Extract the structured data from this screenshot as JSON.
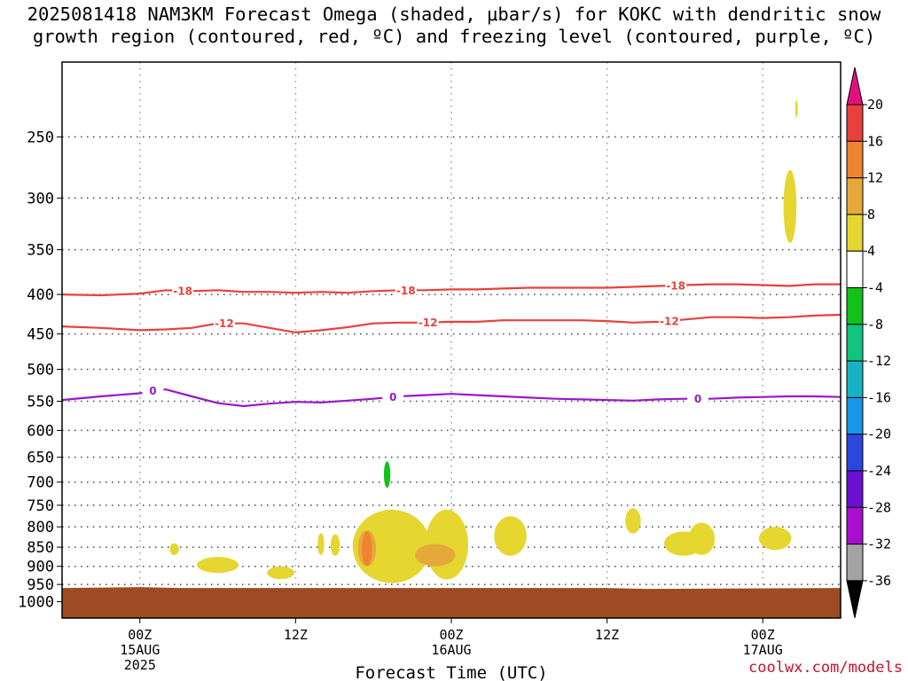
{
  "chart_data": {
    "type": "heatmap",
    "title_line1": "2025081418 NAM3KM Forecast Omega (shaded, μbar/s) for KOKC with dendritic snow",
    "title_line2": "growth region (contoured, red, ºC) and freezing level (contoured, purple, ºC)",
    "xlabel": "Forecast Time (UTC)",
    "x_tick_labels": [
      {
        "t": "00Z",
        "d": "15AUG",
        "y": "2025"
      },
      {
        "t": "12Z",
        "d": "",
        "y": ""
      },
      {
        "t": "00Z",
        "d": "16AUG",
        "y": ""
      },
      {
        "t": "12Z",
        "d": "",
        "y": ""
      },
      {
        "t": "00Z",
        "d": "17AUG",
        "y": ""
      }
    ],
    "x_range_hours": [
      -6,
      54
    ],
    "y_axis_log_pressure": true,
    "y_range_hPa": [
      200,
      1050
    ],
    "y_tick_labels": [
      "250",
      "300",
      "350",
      "400",
      "450",
      "500",
      "550",
      "600",
      "650",
      "700",
      "750",
      "800",
      "850",
      "900",
      "950",
      "1000"
    ],
    "grid": "dotted",
    "colorbar": {
      "tick_labels": [
        "20",
        "16",
        "12",
        "8",
        "4",
        "-4",
        "-8",
        "-12",
        "-16",
        "-20",
        "-24",
        "-28",
        "-32",
        "-36"
      ],
      "colors": {
        "above_20": "#e0117f",
        "16_20": "#e8413c",
        "12_16": "#ef8430",
        "8_12": "#e6a83b",
        "4_8": "#e6d630",
        "neutral": "#ffffff",
        "m8_m4": "#12c21a",
        "m12_m8": "#11c47f",
        "m16_m12": "#17b3c4",
        "m20_m16": "#1a96e6",
        "m24_m20": "#2a48e0",
        "m28_m24": "#6b0fd1",
        "m32_m28": "#a80fd0",
        "m36_m32": "#a3a3a3",
        "below_m36": "#000000"
      }
    },
    "contours": [
      {
        "label": "-18",
        "color": "#e8413c",
        "hours": [
          -6,
          -3,
          0,
          2,
          4,
          6,
          8,
          10,
          12,
          14,
          16,
          18,
          20,
          22,
          24,
          26,
          28,
          30,
          32,
          34,
          36,
          38,
          40,
          42,
          44,
          46,
          48,
          50,
          52,
          54
        ],
        "pressure_hPa": [
          400,
          401,
          399,
          395,
          396,
          395,
          397,
          397,
          398,
          397,
          398,
          396,
          395,
          395,
          394,
          394,
          393,
          392,
          392,
          392,
          392,
          391,
          390,
          389,
          388,
          388,
          389,
          390,
          388,
          388
        ]
      },
      {
        "label": "-12",
        "color": "#e8413c",
        "hours": [
          -6,
          -3,
          0,
          2,
          4,
          6,
          8,
          10,
          12,
          14,
          16,
          18,
          20,
          22,
          24,
          26,
          28,
          30,
          32,
          34,
          36,
          38,
          40,
          42,
          44,
          46,
          48,
          50,
          52,
          54
        ],
        "pressure_hPa": [
          440,
          442,
          445,
          444,
          442,
          436,
          436,
          442,
          448,
          445,
          441,
          436,
          435,
          435,
          434,
          434,
          432,
          432,
          432,
          432,
          433,
          435,
          434,
          431,
          428,
          428,
          429,
          428,
          426,
          425
        ]
      },
      {
        "label": "0",
        "color": "#9a18c8",
        "hours": [
          -6,
          -3,
          0,
          1,
          2,
          4,
          6,
          8,
          10,
          12,
          14,
          16,
          18,
          20,
          22,
          24,
          26,
          28,
          30,
          32,
          34,
          36,
          38,
          40,
          42,
          44,
          46,
          48,
          50,
          52,
          54
        ],
        "pressure_hPa": [
          548,
          542,
          537,
          533,
          531,
          542,
          553,
          558,
          554,
          551,
          552,
          549,
          546,
          542,
          540,
          538,
          540,
          542,
          544,
          546,
          547,
          548,
          549,
          547,
          546,
          546,
          544,
          543,
          542,
          542,
          543
        ]
      }
    ],
    "omega_regions": [
      {
        "category": "4_8",
        "pressure_hPa": [
          [
            224,
            236
          ],
          [
            276,
            343
          ],
          [
            757,
            816
          ],
          [
            811,
            872
          ],
          [
            840,
            870
          ],
          [
            875,
            918
          ],
          [
            900,
            935
          ],
          [
            815,
            870
          ],
          [
            818,
            872
          ],
          [
            760,
            946
          ],
          [
            760,
            936
          ],
          [
            775,
            872
          ],
          [
            790,
            870
          ],
          [
            800,
            857
          ]
        ],
        "hours": [
          [
            50.5,
            50.7
          ],
          [
            49.6,
            50.6
          ],
          [
            37.4,
            38.6
          ],
          [
            40.4,
            43.4
          ],
          [
            2.3,
            3.0
          ],
          [
            4.4,
            7.6
          ],
          [
            9.8,
            11.9
          ],
          [
            13.7,
            14.2
          ],
          [
            14.7,
            15.4
          ],
          [
            16.4,
            22.4
          ],
          [
            22.0,
            25.3
          ],
          [
            27.3,
            29.8
          ],
          [
            42.3,
            44.3
          ],
          [
            47.7,
            50.2
          ]
        ]
      },
      {
        "category": "8_12",
        "pressure_hPa": [
          [
            808,
            900
          ],
          [
            842,
            900
          ]
        ],
        "hours": [
          [
            16.8,
            18.2
          ],
          [
            21.2,
            24.3
          ]
        ]
      },
      {
        "category": "12_16",
        "pressure_hPa": [
          [
            812,
            898
          ]
        ],
        "hours": [
          [
            17.1,
            17.9
          ]
        ]
      },
      {
        "category": "m8_m4",
        "pressure_hPa": [
          [
            658,
            712
          ]
        ],
        "hours": [
          [
            18.8,
            19.3
          ]
        ]
      }
    ],
    "surface_fill_color": "#9e4b23"
  },
  "credit": "coolwx.com/models"
}
